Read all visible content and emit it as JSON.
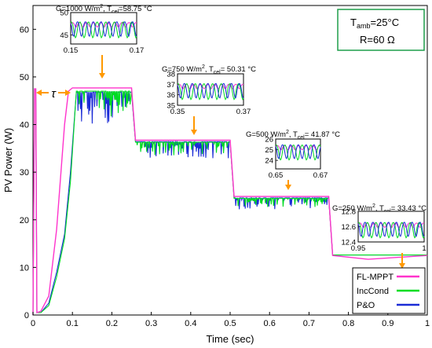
{
  "chart_data": {
    "type": "line",
    "xlabel": "Time (sec)",
    "ylabel": "PV Power (W)",
    "xlim": [
      0,
      1
    ],
    "ylim": [
      0,
      65
    ],
    "xticks": [
      "0",
      "0.1",
      "0.2",
      "0.3",
      "0.4",
      "0.5",
      "0.6",
      "0.7",
      "0.8",
      "0.9",
      "1"
    ],
    "yticks": [
      "0",
      "10",
      "20",
      "30",
      "40",
      "50",
      "60"
    ],
    "grid": false,
    "legend_position": "bottom-right",
    "series": [
      {
        "name": "FL-MPPT",
        "color": "#ff33cc",
        "x": [
          0,
          0.004,
          0.007,
          0.01,
          0.02,
          0.04,
          0.06,
          0.08,
          0.09,
          0.1,
          0.25,
          0.26,
          0.5,
          0.51,
          0.75,
          0.76,
          0.85,
          1.0
        ],
        "y": [
          0,
          47.5,
          47.5,
          0.5,
          0.8,
          4,
          18,
          40,
          47,
          47.7,
          47.7,
          36.7,
          36.7,
          24.9,
          24.9,
          12.5,
          11.7,
          12.5
        ]
      },
      {
        "name": "IncCond",
        "color": "#00dd22",
        "x": [
          0,
          0.004,
          0.007,
          0.01,
          0.02,
          0.04,
          0.06,
          0.08,
          0.095,
          0.11,
          0.25,
          0.26,
          0.5,
          0.51,
          0.75,
          0.76,
          1.0
        ],
        "y": [
          0,
          47.5,
          47.5,
          0.5,
          0.5,
          2,
          8,
          16,
          28,
          47,
          47,
          36.3,
          36.3,
          24.5,
          24.5,
          12.6,
          12.6
        ]
      },
      {
        "name": "P&O",
        "color": "#1a2bd6",
        "x": [
          0,
          0.004,
          0.007,
          0.01,
          0.02,
          0.04,
          0.06,
          0.08,
          0.095,
          0.11,
          0.25,
          0.26,
          0.5,
          0.51,
          0.75,
          0.76,
          1.0
        ],
        "y": [
          0,
          47.5,
          47.5,
          0.5,
          0.5,
          2.5,
          9,
          17,
          30,
          46.8,
          46.8,
          36.4,
          36.4,
          24.6,
          24.6,
          12.6,
          12.6
        ]
      }
    ],
    "annotations": {
      "tau": "τ",
      "conditions_line1": "T",
      "conditions_line1_sub": "amb",
      "conditions_line1_rest": "=25°C",
      "conditions_line2": "R=60 Ω",
      "insets": [
        {
          "label_pre": "G=1000 W/m",
          "label_sup": "2",
          "label_mid": ", T",
          "label_sub": "cel",
          "label_post": "=58.75 °C",
          "yticks": [
            "50",
            "45"
          ],
          "xticks": [
            "0.15",
            "0.17"
          ],
          "ylim": [
            43,
            50
          ],
          "mean": 47.3
        },
        {
          "label_pre": "G=750 W/m",
          "label_sup": "2",
          "label_mid": ", T",
          "label_sub": "cel",
          "label_post": "= 50.31 °C",
          "yticks": [
            "38",
            "37",
            "36",
            "35"
          ],
          "xticks": [
            "0.35",
            "0.37"
          ],
          "ylim": [
            35,
            38
          ],
          "mean": 36.8
        },
        {
          "label_pre": "G=500 W/m",
          "label_sup": "2",
          "label_mid": ", T",
          "label_sub": "cel",
          "label_post": "= 41.87 °C",
          "yticks": [
            "26",
            "25",
            "24"
          ],
          "xticks": [
            "0.65",
            "0.67"
          ],
          "ylim": [
            23.2,
            26
          ],
          "mean": 25.2
        },
        {
          "label_pre": "G=250 W/m",
          "label_sup": "2",
          "label_mid": ", T",
          "label_sub": "cel",
          "label_post": "= 33.43 °C",
          "yticks": [
            "12.8",
            "12.6",
            "12.4"
          ],
          "xticks": [
            "0.95",
            "1"
          ],
          "ylim": [
            12.4,
            12.8
          ],
          "mean": 12.62
        }
      ]
    }
  }
}
